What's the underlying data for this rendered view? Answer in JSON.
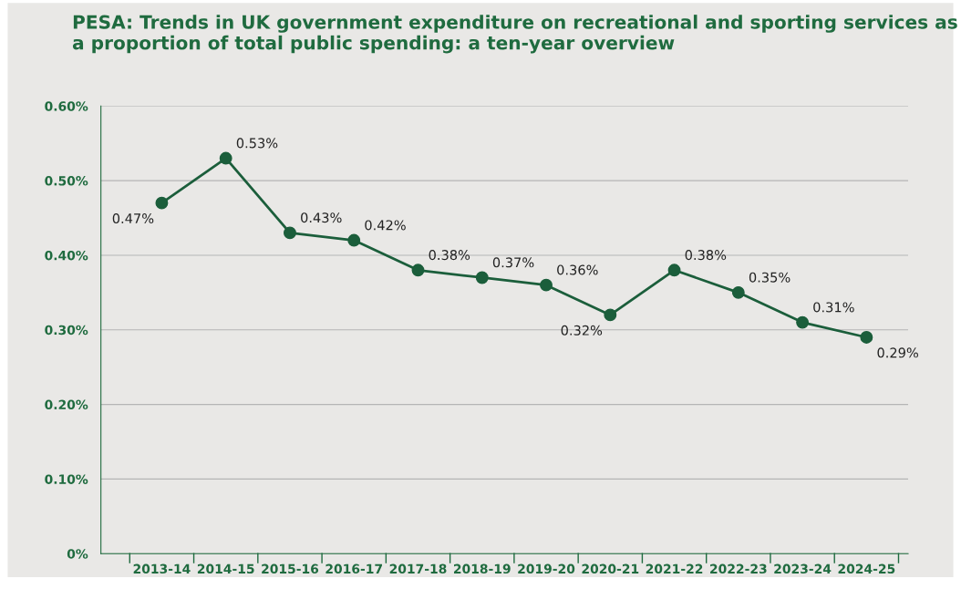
{
  "chart_data": {
    "type": "line",
    "title": "PESA: Trends in UK government expenditure on recreational and sporting services as a proportion of total public spending: a ten-year overview",
    "categories": [
      "2013-14",
      "2014-15",
      "2015-16",
      "2016-17",
      "2017-18",
      "2018-19",
      "2019-20",
      "2020-21",
      "2021-22",
      "2022-23",
      "2023-24",
      "2024-25"
    ],
    "series": [
      {
        "color": "#1b5e3b",
        "values": [
          0.47,
          0.53,
          0.43,
          0.42,
          0.38,
          0.37,
          0.36,
          0.32,
          0.38,
          0.35,
          0.31,
          0.29
        ],
        "value_labels": [
          "0.47%",
          "0.53%",
          "0.43%",
          "0.42%",
          "0.38%",
          "0.37%",
          "0.36%",
          "0.32%",
          "0.38%",
          "0.35%",
          "0.31%",
          "0.29%"
        ]
      }
    ],
    "ylim": [
      0,
      0.6
    ],
    "yticks": [
      {
        "value": 0,
        "label": "0%"
      },
      {
        "value": 0.1,
        "label": "0.10%"
      },
      {
        "value": 0.2,
        "label": "0.20%"
      },
      {
        "value": 0.3,
        "label": "0.30%"
      },
      {
        "value": 0.4,
        "label": "0.40%"
      },
      {
        "value": 0.5,
        "label": "0.50%"
      },
      {
        "value": 0.6,
        "label": "0.60%"
      }
    ],
    "grid": "y",
    "marker": "circle",
    "line_style": "solid"
  }
}
